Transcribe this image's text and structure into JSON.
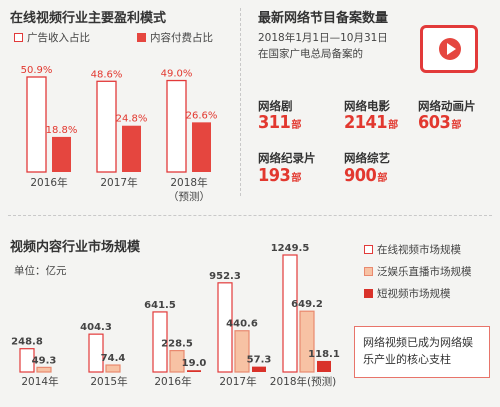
{
  "top_left": {
    "title": "在线视频行业主要盈利模式",
    "legend": [
      {
        "label": "广告收入占比",
        "style": "outline"
      },
      {
        "label": "内容付费占比",
        "style": "filled"
      }
    ]
  },
  "top_right": {
    "title": "最新网络节目备案数量",
    "subtitle_line1": "2018年1月1日—10月31日",
    "subtitle_line2": "在国家广电总局备案的",
    "stats": [
      {
        "label": "网络剧",
        "value": "311",
        "unit": "部"
      },
      {
        "label": "网络电影",
        "value": "2141",
        "unit": "部"
      },
      {
        "label": "网络动画片",
        "value": "603",
        "unit": "部"
      },
      {
        "label": "网络纪录片",
        "value": "193",
        "unit": "部"
      },
      {
        "label": "网络综艺",
        "value": "900",
        "unit": "部"
      }
    ],
    "icon": "tablet-play-icon"
  },
  "bottom": {
    "title": "视频内容行业市场规模",
    "unit_label": "单位：亿元",
    "legend": [
      {
        "label": "在线视频市场规模",
        "style": "outline"
      },
      {
        "label": "泛娱乐直播市场规模",
        "style": "pink"
      },
      {
        "label": "短视频市场规模",
        "style": "dark"
      }
    ],
    "note": "网络视频已成为网络娱乐产业的核心支柱"
  },
  "colors": {
    "red": "#e5463f",
    "outline": "#e23a3a",
    "pink": "#f7c2a4",
    "dark_red": "#d9322a"
  },
  "chart_data": [
    {
      "type": "bar",
      "title": "在线视频行业主要盈利模式",
      "categories": [
        "2016年",
        "2017年",
        "2018年（预测）"
      ],
      "series": [
        {
          "name": "广告收入占比",
          "values": [
            50.9,
            48.6,
            49.0
          ],
          "labels": [
            "50.9%",
            "48.6%",
            "49.0%"
          ]
        },
        {
          "name": "内容付费占比",
          "values": [
            18.8,
            24.8,
            26.6
          ],
          "labels": [
            "18.8%",
            "24.8%",
            "26.6%"
          ]
        }
      ]
    },
    {
      "type": "bar",
      "title": "视频内容行业市场规模",
      "unit": "单位：亿元",
      "categories": [
        "2014年",
        "2015年",
        "2016年",
        "2017年",
        "2018年(预测)"
      ],
      "series": [
        {
          "name": "在线视频市场规模",
          "values": [
            248.8,
            404.3,
            641.5,
            952.3,
            1249.5
          ],
          "labels": [
            "248.8",
            "404.3",
            "641.5",
            "952.3",
            "1249.5"
          ]
        },
        {
          "name": "泛娱乐直播市场规模",
          "values": [
            49.3,
            74.4,
            228.5,
            440.6,
            649.2
          ],
          "labels": [
            "49.3",
            "74.4",
            "228.5",
            "440.6",
            "649.2"
          ]
        },
        {
          "name": "短视频市场规模",
          "values": [
            null,
            null,
            19.0,
            57.3,
            118.1
          ],
          "labels": [
            "",
            "",
            "19.0",
            "57.3",
            "118.1"
          ]
        }
      ]
    }
  ]
}
